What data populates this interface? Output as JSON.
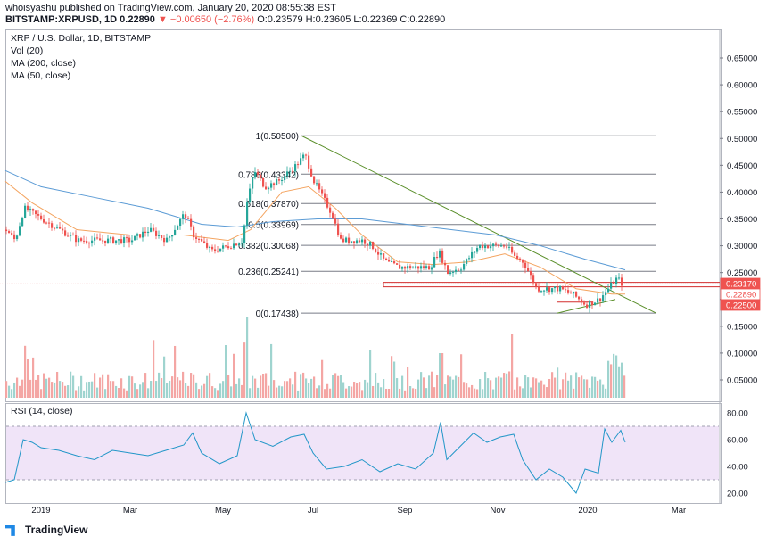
{
  "header": {
    "line1": "whoisyashu published on TradingView.com, January 20, 2020 08:55:38 EST",
    "symbol": "BITSTAMP:XRPUSD, 1D",
    "last": "0.22890",
    "change": "▼ −0.00650 (−2.76%)",
    "ohlc": "O:0.23579 H:0.23605 L:0.22369 C:0.22890"
  },
  "legend": {
    "title": "XRP / U.S. Dollar, 1D, BITSTAMP",
    "vol": "Vol (20)",
    "ma200": "MA (200, close)",
    "ma50": "MA (50, close)",
    "rsi": "RSI (14, close)"
  },
  "footer": {
    "brand": "TradingView"
  },
  "colors": {
    "up": "#26a69a",
    "down": "#ef5350",
    "ma200": "#5b9bd5",
    "ma50": "#f4a460",
    "trend": "#5a8f2a",
    "fib": "#787b86",
    "rsi": "#2196c8",
    "rsiband": "#ead9f5",
    "priceTag": "#ef5350"
  },
  "chart_data": {
    "type": "candlestick",
    "x_tick_labels": [
      "2019",
      "Mar",
      "May",
      "Jul",
      "Sep",
      "Nov",
      "2020",
      "Mar"
    ],
    "y_ticks": [
      "0.65000",
      "0.60000",
      "0.55000",
      "0.50000",
      "0.45000",
      "0.40000",
      "0.35000",
      "0.30000",
      "0.25000",
      "0.20000",
      "0.15000",
      "0.10000",
      "0.05000"
    ],
    "y_range": [
      0.0,
      0.68
    ],
    "price_tags": [
      "0.23170",
      "0.22890",
      "0.22500"
    ],
    "rsi_ticks": [
      "80.00",
      "60.00",
      "40.00",
      "20.00"
    ],
    "rsi_band": [
      30,
      70
    ],
    "fib_levels": [
      {
        "label": "1(0.50500)",
        "value": 0.505
      },
      {
        "label": "0.786(0.43342)",
        "value": 0.43342
      },
      {
        "label": "0.618(0.37870)",
        "value": 0.3787
      },
      {
        "label": "0.5(0.33969)",
        "value": 0.33969
      },
      {
        "label": "0.382(0.30068)",
        "value": 0.30068
      },
      {
        "label": "0.236(0.25241)",
        "value": 0.25241
      },
      {
        "label": "0(0.17438)",
        "value": 0.17438
      }
    ],
    "price_path": [
      [
        0,
        0.33
      ],
      [
        10,
        0.31
      ],
      [
        20,
        0.37
      ],
      [
        40,
        0.35
      ],
      [
        60,
        0.33
      ],
      [
        80,
        0.31
      ],
      [
        100,
        0.31
      ],
      [
        120,
        0.31
      ],
      [
        140,
        0.31
      ],
      [
        160,
        0.33
      ],
      [
        180,
        0.31
      ],
      [
        200,
        0.36
      ],
      [
        210,
        0.32
      ],
      [
        230,
        0.29
      ],
      [
        250,
        0.3
      ],
      [
        265,
        0.31
      ],
      [
        270,
        0.38
      ],
      [
        278,
        0.44
      ],
      [
        290,
        0.41
      ],
      [
        305,
        0.42
      ],
      [
        325,
        0.45
      ],
      [
        335,
        0.47
      ],
      [
        345,
        0.42
      ],
      [
        355,
        0.39
      ],
      [
        365,
        0.36
      ],
      [
        375,
        0.31
      ],
      [
        385,
        0.31
      ],
      [
        400,
        0.31
      ],
      [
        410,
        0.3
      ],
      [
        425,
        0.27
      ],
      [
        440,
        0.26
      ],
      [
        460,
        0.26
      ],
      [
        475,
        0.26
      ],
      [
        485,
        0.29
      ],
      [
        495,
        0.25
      ],
      [
        510,
        0.26
      ],
      [
        520,
        0.28
      ],
      [
        530,
        0.3
      ],
      [
        545,
        0.3
      ],
      [
        560,
        0.3
      ],
      [
        570,
        0.28
      ],
      [
        580,
        0.27
      ],
      [
        595,
        0.22
      ],
      [
        610,
        0.22
      ],
      [
        620,
        0.22
      ],
      [
        635,
        0.21
      ],
      [
        650,
        0.19
      ],
      [
        665,
        0.2
      ],
      [
        675,
        0.22
      ],
      [
        685,
        0.24
      ],
      [
        690,
        0.23
      ]
    ],
    "ma200_path": [
      [
        0,
        0.44
      ],
      [
        40,
        0.41
      ],
      [
        100,
        0.39
      ],
      [
        160,
        0.37
      ],
      [
        220,
        0.34
      ],
      [
        260,
        0.335
      ],
      [
        300,
        0.345
      ],
      [
        350,
        0.35
      ],
      [
        400,
        0.35
      ],
      [
        450,
        0.34
      ],
      [
        500,
        0.33
      ],
      [
        550,
        0.32
      ],
      [
        600,
        0.3
      ],
      [
        650,
        0.275
      ],
      [
        695,
        0.255
      ]
    ],
    "ma50_path": [
      [
        0,
        0.42
      ],
      [
        30,
        0.38
      ],
      [
        80,
        0.33
      ],
      [
        140,
        0.32
      ],
      [
        200,
        0.32
      ],
      [
        250,
        0.31
      ],
      [
        275,
        0.33
      ],
      [
        310,
        0.4
      ],
      [
        340,
        0.41
      ],
      [
        370,
        0.37
      ],
      [
        400,
        0.32
      ],
      [
        440,
        0.27
      ],
      [
        480,
        0.265
      ],
      [
        520,
        0.27
      ],
      [
        560,
        0.285
      ],
      [
        600,
        0.26
      ],
      [
        640,
        0.22
      ],
      [
        680,
        0.21
      ],
      [
        695,
        0.21
      ]
    ],
    "rsi_path": [
      [
        0,
        28
      ],
      [
        10,
        30
      ],
      [
        20,
        60
      ],
      [
        30,
        58
      ],
      [
        40,
        54
      ],
      [
        60,
        52
      ],
      [
        80,
        48
      ],
      [
        100,
        45
      ],
      [
        120,
        52
      ],
      [
        140,
        50
      ],
      [
        160,
        48
      ],
      [
        180,
        52
      ],
      [
        200,
        56
      ],
      [
        210,
        65
      ],
      [
        220,
        50
      ],
      [
        240,
        42
      ],
      [
        260,
        48
      ],
      [
        270,
        80
      ],
      [
        280,
        60
      ],
      [
        300,
        55
      ],
      [
        320,
        62
      ],
      [
        335,
        64
      ],
      [
        345,
        50
      ],
      [
        360,
        38
      ],
      [
        380,
        40
      ],
      [
        400,
        45
      ],
      [
        420,
        36
      ],
      [
        440,
        42
      ],
      [
        460,
        38
      ],
      [
        480,
        50
      ],
      [
        488,
        73
      ],
      [
        495,
        45
      ],
      [
        510,
        55
      ],
      [
        525,
        65
      ],
      [
        540,
        58
      ],
      [
        555,
        62
      ],
      [
        570,
        64
      ],
      [
        580,
        45
      ],
      [
        595,
        30
      ],
      [
        610,
        38
      ],
      [
        625,
        32
      ],
      [
        640,
        20
      ],
      [
        650,
        38
      ],
      [
        665,
        35
      ],
      [
        672,
        68
      ],
      [
        680,
        58
      ],
      [
        690,
        67
      ],
      [
        695,
        58
      ]
    ]
  }
}
